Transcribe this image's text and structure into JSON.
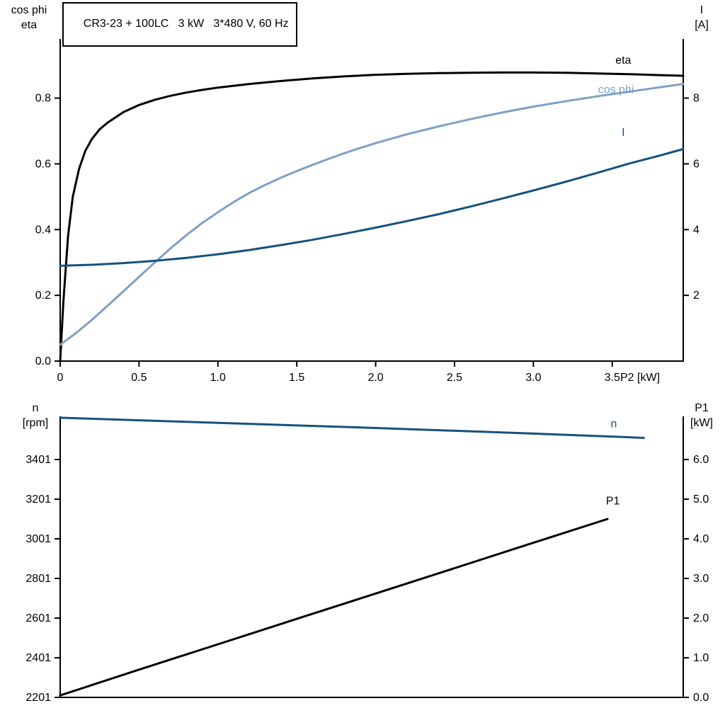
{
  "title": "CR3-23 + 100LC   3 kW   3*480 V, 60 Hz",
  "labels": {
    "top_left_line1": "cos phi",
    "top_left_line2": "eta",
    "top_right_line1": "I",
    "top_right_line2": "[A]",
    "bottom_left_line1": "n",
    "bottom_left_line2": "[rpm]",
    "bottom_right_line1": "P1",
    "bottom_right_line2": "[kW]",
    "x_axis": "P2 [kW]"
  },
  "colors": {
    "axis": "#000000",
    "black_curve": "#000000",
    "light_blue_curve": "#7da0c4",
    "dark_blue_curve": "#14527d",
    "background": "#ffffff"
  },
  "chart_data": [
    {
      "type": "line",
      "title": "CR3-23 + 100LC   3 kW   3*480 V, 60 Hz",
      "xlabel": "P2 [kW]",
      "ylabel_left": "cos phi / eta",
      "ylabel_right": "I [A]",
      "xlim": [
        0,
        3.95
      ],
      "ylim_left": [
        0,
        0.98
      ],
      "ylim_right": [
        0,
        9.8
      ],
      "grid": false,
      "xticks": {
        "values": [
          0,
          0.5,
          1.0,
          1.5,
          2.0,
          2.5,
          3.0,
          3.5
        ],
        "labels": [
          "0",
          "0.5",
          "1.0",
          "1.5",
          "2.0",
          "2.5",
          "3.0",
          "3.5"
        ]
      },
      "yticks_left": {
        "values": [
          0,
          0.2,
          0.4,
          0.6,
          0.8
        ],
        "labels": [
          "0.0",
          "0.2",
          "0.4",
          "0.6",
          "0.8"
        ]
      },
      "yticks_right": {
        "values": [
          2,
          4,
          6,
          8
        ],
        "labels": [
          "2",
          "4",
          "6",
          "8"
        ]
      },
      "series": [
        {
          "name": "eta",
          "label": "eta",
          "axis": "left",
          "color": "#000000",
          "label_x": 3.52,
          "label_y": 0.905,
          "points": [
            [
              0,
              0
            ],
            [
              0.02,
              0.18
            ],
            [
              0.05,
              0.38
            ],
            [
              0.08,
              0.5
            ],
            [
              0.12,
              0.585
            ],
            [
              0.16,
              0.64
            ],
            [
              0.2,
              0.675
            ],
            [
              0.25,
              0.705
            ],
            [
              0.3,
              0.725
            ],
            [
              0.4,
              0.757
            ],
            [
              0.5,
              0.779
            ],
            [
              0.6,
              0.795
            ],
            [
              0.7,
              0.807
            ],
            [
              0.8,
              0.817
            ],
            [
              0.9,
              0.825
            ],
            [
              1.0,
              0.832
            ],
            [
              1.2,
              0.843
            ],
            [
              1.4,
              0.852
            ],
            [
              1.6,
              0.86
            ],
            [
              1.8,
              0.866
            ],
            [
              2.0,
              0.871
            ],
            [
              2.2,
              0.874
            ],
            [
              2.4,
              0.876
            ],
            [
              2.6,
              0.877
            ],
            [
              2.8,
              0.878
            ],
            [
              3.0,
              0.878
            ],
            [
              3.2,
              0.877
            ],
            [
              3.4,
              0.875
            ],
            [
              3.6,
              0.873
            ],
            [
              3.8,
              0.87
            ],
            [
              3.95,
              0.868
            ]
          ]
        },
        {
          "name": "cos_phi",
          "label": "cos phi",
          "axis": "left",
          "color": "#7da0c4",
          "label_x": 3.41,
          "label_y": 0.815,
          "points": [
            [
              0,
              0.05
            ],
            [
              0.1,
              0.085
            ],
            [
              0.2,
              0.125
            ],
            [
              0.3,
              0.168
            ],
            [
              0.4,
              0.212
            ],
            [
              0.5,
              0.256
            ],
            [
              0.6,
              0.3
            ],
            [
              0.7,
              0.343
            ],
            [
              0.8,
              0.383
            ],
            [
              0.9,
              0.42
            ],
            [
              1.0,
              0.453
            ],
            [
              1.1,
              0.484
            ],
            [
              1.2,
              0.512
            ],
            [
              1.3,
              0.536
            ],
            [
              1.4,
              0.558
            ],
            [
              1.5,
              0.578
            ],
            [
              1.6,
              0.597
            ],
            [
              1.7,
              0.615
            ],
            [
              1.8,
              0.632
            ],
            [
              1.9,
              0.648
            ],
            [
              2.0,
              0.663
            ],
            [
              2.2,
              0.69
            ],
            [
              2.4,
              0.714
            ],
            [
              2.6,
              0.736
            ],
            [
              2.8,
              0.756
            ],
            [
              3.0,
              0.774
            ],
            [
              3.2,
              0.79
            ],
            [
              3.4,
              0.805
            ],
            [
              3.6,
              0.819
            ],
            [
              3.8,
              0.833
            ],
            [
              3.95,
              0.843
            ]
          ]
        },
        {
          "name": "I",
          "label": "I",
          "axis": "right",
          "color": "#14527d",
          "label_x": 3.56,
          "label_y": 6.85,
          "points": [
            [
              0,
              2.9
            ],
            [
              0.2,
              2.93
            ],
            [
              0.4,
              2.98
            ],
            [
              0.6,
              3.05
            ],
            [
              0.8,
              3.14
            ],
            [
              1.0,
              3.25
            ],
            [
              1.2,
              3.38
            ],
            [
              1.4,
              3.53
            ],
            [
              1.6,
              3.69
            ],
            [
              1.8,
              3.87
            ],
            [
              2.0,
              4.06
            ],
            [
              2.2,
              4.26
            ],
            [
              2.4,
              4.47
            ],
            [
              2.6,
              4.7
            ],
            [
              2.8,
              4.94
            ],
            [
              3.0,
              5.19
            ],
            [
              3.2,
              5.45
            ],
            [
              3.4,
              5.72
            ],
            [
              3.6,
              6.0
            ],
            [
              3.8,
              6.25
            ],
            [
              3.95,
              6.45
            ]
          ]
        }
      ]
    },
    {
      "type": "line",
      "title": "",
      "xlabel": "",
      "ylabel_left": "n [rpm]",
      "ylabel_right": "P1 [kW]",
      "xlim": [
        0,
        3.95
      ],
      "ylim_left": [
        2201,
        3619
      ],
      "ylim_right": [
        0,
        7.09
      ],
      "grid": false,
      "xticks": {
        "values": [],
        "labels": []
      },
      "yticks_left": {
        "values": [
          2201,
          2401,
          2601,
          2801,
          3001,
          3201,
          3401
        ],
        "labels": [
          "2201",
          "2401",
          "2601",
          "2801",
          "3001",
          "3201",
          "3401"
        ]
      },
      "yticks_right": {
        "values": [
          0,
          1,
          2,
          3,
          4,
          5,
          6
        ],
        "labels": [
          "0.0",
          "1.0",
          "2.0",
          "3.0",
          "4.0",
          "5.0",
          "6.0"
        ]
      },
      "series": [
        {
          "name": "n",
          "label": "n",
          "axis": "left",
          "color": "#14527d",
          "label_x": 3.49,
          "label_y": 3563,
          "points": [
            [
              0,
              3612
            ],
            [
              0.5,
              3599
            ],
            [
              1.0,
              3586
            ],
            [
              1.5,
              3573
            ],
            [
              2.0,
              3560
            ],
            [
              2.5,
              3546
            ],
            [
              3.0,
              3532
            ],
            [
              3.5,
              3517
            ],
            [
              3.7,
              3510
            ]
          ]
        },
        {
          "name": "P1",
          "label": "P1",
          "axis": "right",
          "color": "#000000",
          "label_x": 3.46,
          "label_y": 4.87,
          "points": [
            [
              0,
              0.05
            ],
            [
              0.5,
              0.7
            ],
            [
              1.0,
              1.34
            ],
            [
              1.5,
              1.98
            ],
            [
              2.0,
              2.62
            ],
            [
              2.5,
              3.26
            ],
            [
              3.0,
              3.9
            ],
            [
              3.47,
              4.5
            ]
          ]
        }
      ]
    }
  ]
}
